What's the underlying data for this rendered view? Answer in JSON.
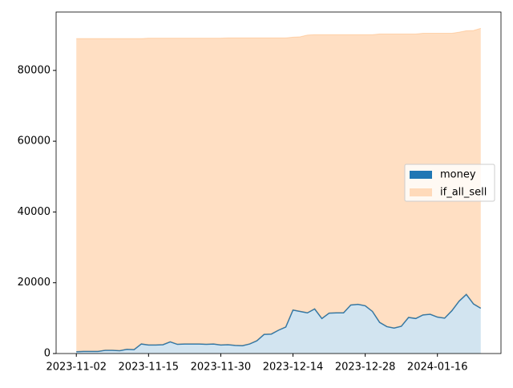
{
  "chart_data": {
    "type": "area",
    "stacked": true,
    "categories": [
      "2023-11-02",
      null,
      null,
      null,
      null,
      null,
      null,
      null,
      null,
      null,
      "2023-11-15",
      null,
      null,
      null,
      null,
      null,
      null,
      null,
      null,
      null,
      "2023-11-30",
      null,
      null,
      null,
      null,
      null,
      null,
      null,
      null,
      null,
      "2023-12-14",
      null,
      null,
      null,
      null,
      null,
      null,
      null,
      null,
      null,
      "2023-12-28",
      null,
      null,
      null,
      null,
      null,
      null,
      null,
      null,
      null,
      "2024-01-16",
      null,
      null,
      null,
      null,
      null,
      null
    ],
    "series": [
      {
        "name": "money",
        "color": "#1f77b4",
        "values": [
          500,
          600,
          600,
          600,
          900,
          900,
          800,
          1200,
          1100,
          2700,
          2400,
          2400,
          2500,
          3300,
          2600,
          2700,
          2700,
          2700,
          2600,
          2700,
          2400,
          2500,
          2300,
          2200,
          2700,
          3600,
          5400,
          5500,
          6600,
          7500,
          12300,
          11900,
          11500,
          12600,
          9900,
          11400,
          11500,
          11500,
          13700,
          13900,
          13500,
          11900,
          8800,
          7600,
          7200,
          7700,
          10200,
          9900,
          10900,
          11100,
          10300,
          10000,
          12100,
          14800,
          16700,
          14000,
          12800
        ]
      },
      {
        "name": "if_all_sell",
        "color": "#ff7f0e",
        "values": [
          88500,
          88400,
          88400,
          88400,
          88100,
          88100,
          88200,
          87800,
          87900,
          86300,
          86700,
          86700,
          86600,
          85800,
          86500,
          86400,
          86400,
          86400,
          86500,
          86400,
          86700,
          86700,
          86900,
          87000,
          86500,
          85600,
          83800,
          83700,
          82600,
          81700,
          77100,
          77600,
          78500,
          77500,
          80200,
          78700,
          78600,
          78600,
          76400,
          76200,
          76600,
          78200,
          81500,
          82700,
          83100,
          82600,
          80100,
          80400,
          79600,
          79400,
          80200,
          80500,
          78400,
          76000,
          74500,
          77300,
          79100
        ]
      }
    ],
    "ylim": [
      0,
      96500
    ],
    "yticks": [
      0,
      20000,
      40000,
      60000,
      80000
    ],
    "legend": "center right"
  }
}
